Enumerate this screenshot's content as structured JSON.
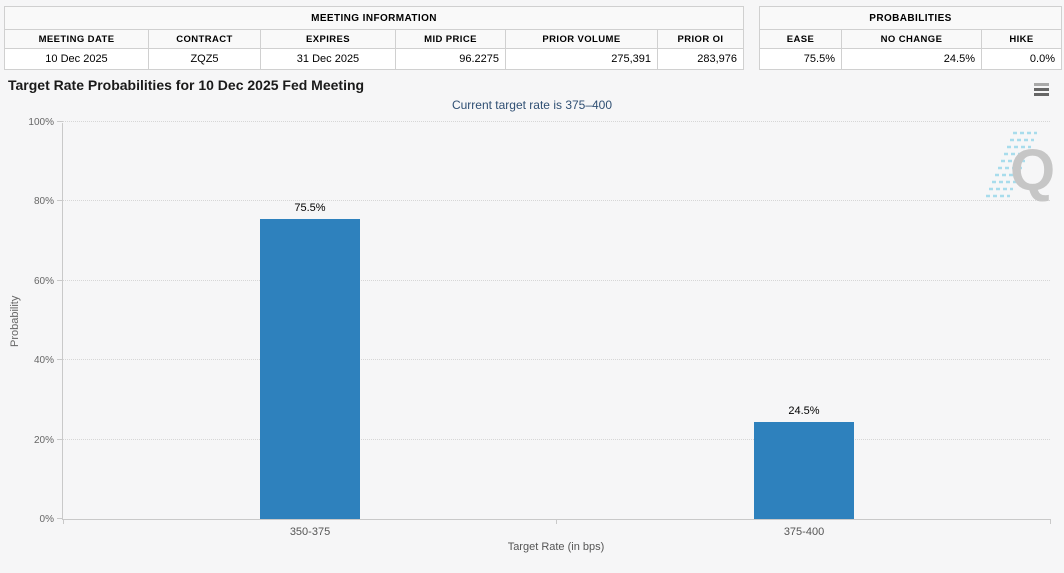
{
  "meeting_info": {
    "title": "MEETING INFORMATION",
    "columns": [
      "MEETING DATE",
      "CONTRACT",
      "EXPIRES",
      "MID PRICE",
      "PRIOR VOLUME",
      "PRIOR OI"
    ],
    "row": [
      "10 Dec 2025",
      "ZQZ5",
      "31 Dec 2025",
      "96.2275",
      "275,391",
      "283,976"
    ]
  },
  "probabilities": {
    "title": "PROBABILITIES",
    "columns": [
      "EASE",
      "NO CHANGE",
      "HIKE"
    ],
    "row": [
      "75.5%",
      "24.5%",
      "0.0%"
    ]
  },
  "chart": {
    "menu_icon": "hamburger-menu-icon",
    "watermark_letter": "Q"
  },
  "chart_data": {
    "type": "bar",
    "title": "Target Rate Probabilities for 10 Dec 2025 Fed Meeting",
    "subtitle": "Current target rate is 375–400",
    "categories": [
      "350-375",
      "375-400"
    ],
    "values": [
      75.5,
      24.5
    ],
    "value_labels": [
      "75.5%",
      "24.5%"
    ],
    "xlabel": "Target Rate (in bps)",
    "ylabel": "Probability",
    "ylim": [
      0,
      100
    ],
    "yticks": [
      "0%",
      "20%",
      "40%",
      "60%",
      "80%",
      "100%"
    ],
    "grid": "dotted horizontal",
    "legend": "none",
    "bar_color": "#2e81bd"
  },
  "colors": {
    "bar": "#2e81bd",
    "subtitle_text": "#2f4f73",
    "axis_text": "#666666",
    "watermark_q": "#c6c6c6",
    "watermark_stripes": "#a8dcec",
    "page_background": "#f6f6f7"
  }
}
